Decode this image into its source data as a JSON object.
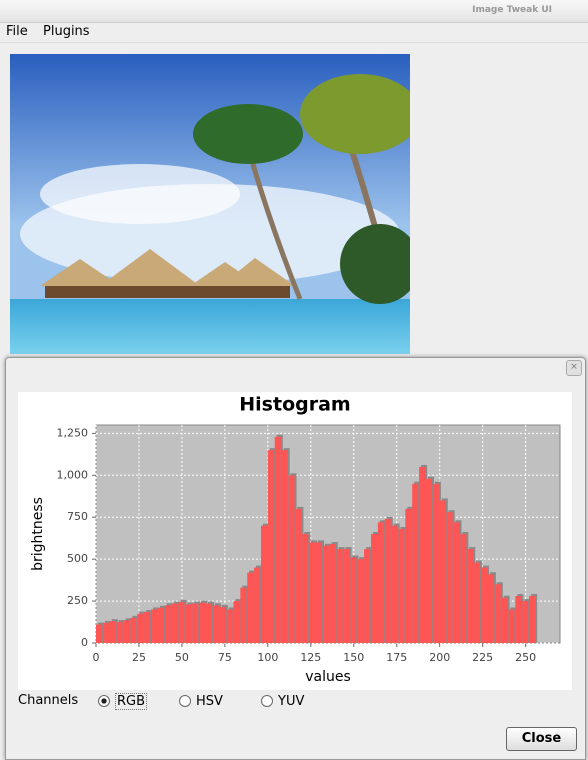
{
  "window_title": "Image Tweak UI",
  "menu": [
    "File",
    "Plugins"
  ],
  "chart_data": {
    "type": "histogram",
    "title": "Histogram",
    "x_label": "values",
    "y_label": "brightness",
    "bins": [
      0,
      4,
      8,
      12,
      16,
      20,
      24,
      28,
      32,
      36,
      40,
      44,
      48,
      52,
      56,
      60,
      64,
      68,
      72,
      76,
      80,
      84,
      88,
      92,
      96,
      100,
      104,
      108,
      112,
      116,
      120,
      124,
      128,
      132,
      136,
      140,
      144,
      148,
      152,
      156,
      160,
      164,
      168,
      172,
      176,
      180,
      184,
      188,
      192,
      196,
      200,
      204,
      208,
      212,
      216,
      220,
      224,
      228,
      232,
      236,
      240,
      244,
      248,
      252,
      256
    ],
    "values": [
      110,
      120,
      130,
      125,
      135,
      150,
      175,
      185,
      200,
      210,
      225,
      235,
      245,
      230,
      235,
      240,
      235,
      225,
      215,
      200,
      250,
      330,
      420,
      450,
      700,
      1150,
      1230,
      1150,
      1000,
      800,
      650,
      600,
      600,
      580,
      590,
      560,
      560,
      510,
      500,
      560,
      650,
      720,
      740,
      700,
      680,
      800,
      950,
      1050,
      980,
      950,
      850,
      780,
      720,
      650,
      560,
      480,
      450,
      410,
      350,
      270,
      200,
      280,
      250,
      280
    ],
    "color": "#ff5555",
    "xlim": [
      0,
      270
    ],
    "xticks": [
      0,
      25,
      50,
      75,
      100,
      125,
      150,
      175,
      200,
      225,
      250
    ],
    "ylim": [
      0,
      1300
    ],
    "yticks": [
      0,
      250,
      500,
      750,
      {
        "value": 1000,
        "label": "1,000"
      },
      {
        "value": 1250,
        "label": "1,250"
      }
    ],
    "grid": true
  },
  "channels": {
    "label": "Channels",
    "options": [
      "RGB",
      "HSV",
      "YUV"
    ],
    "selected": 0
  },
  "close_button": "Close"
}
